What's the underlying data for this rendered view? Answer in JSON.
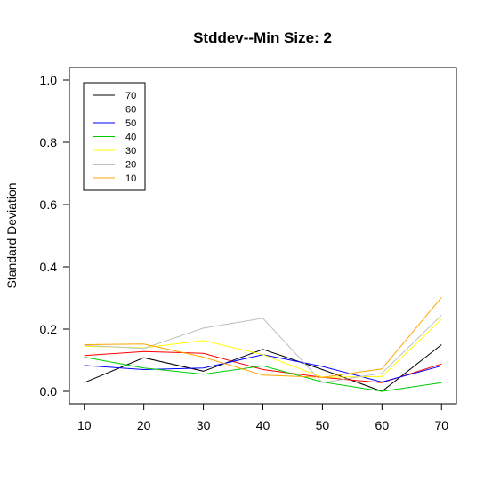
{
  "chart_data": {
    "type": "line",
    "title": "Stddev--Min Size: 2",
    "xlabel": "",
    "ylabel": "Standard Deviation",
    "x": [
      10,
      20,
      30,
      40,
      50,
      60,
      70
    ],
    "xlim": [
      7.5,
      72.5
    ],
    "ylim": [
      -0.04,
      1.04
    ],
    "xticks": [
      "10",
      "20",
      "30",
      "40",
      "50",
      "60",
      "70"
    ],
    "yticks": [
      "0.0",
      "0.2",
      "0.4",
      "0.6",
      "0.8",
      "1.0"
    ],
    "grid": false,
    "legend_position": "top-left",
    "series": [
      {
        "name": "70",
        "color": "#000000",
        "values": [
          0.028,
          0.108,
          0.065,
          0.135,
          0.07,
          0.0,
          0.15
        ]
      },
      {
        "name": "60",
        "color": "#ff0000",
        "values": [
          0.115,
          0.128,
          0.122,
          0.07,
          0.045,
          0.028,
          0.088
        ]
      },
      {
        "name": "50",
        "color": "#0000ff",
        "values": [
          0.083,
          0.07,
          0.075,
          0.118,
          0.08,
          0.03,
          0.082
        ]
      },
      {
        "name": "40",
        "color": "#00cc00",
        "values": [
          0.11,
          0.075,
          0.055,
          0.082,
          0.03,
          0.0,
          0.028
        ]
      },
      {
        "name": "30",
        "color": "#ffff00",
        "values": [
          0.145,
          0.14,
          0.163,
          0.118,
          0.045,
          0.048,
          0.232
        ]
      },
      {
        "name": "20",
        "color": "#bebebe",
        "values": [
          0.148,
          0.138,
          0.203,
          0.235,
          0.028,
          0.058,
          0.245
        ]
      },
      {
        "name": "10",
        "color": "#ffa500",
        "values": [
          0.15,
          0.152,
          0.11,
          0.052,
          0.045,
          0.072,
          0.302
        ]
      }
    ]
  }
}
